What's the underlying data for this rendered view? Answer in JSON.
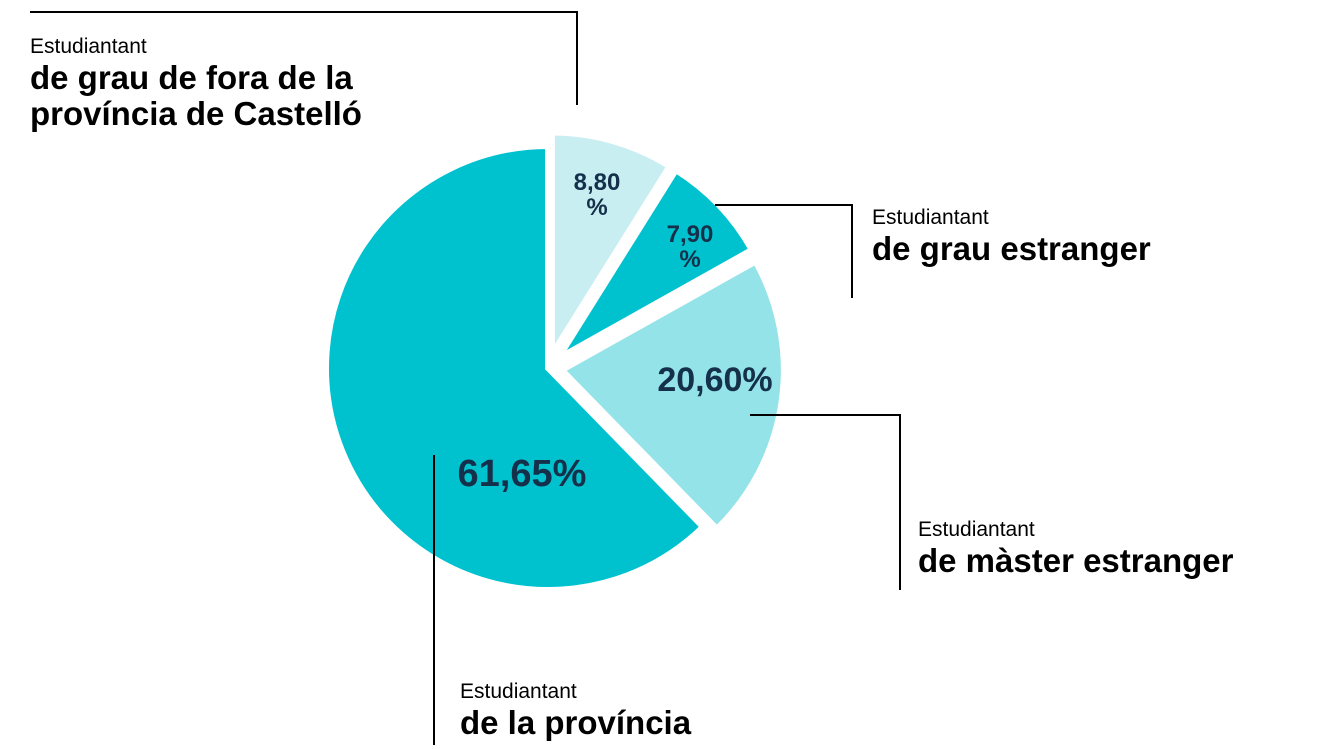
{
  "chart_data": {
    "type": "pie",
    "category_prefixes": [
      "Estudiantant",
      "Estudiantant",
      "Estudiantant",
      "Estudiantant"
    ],
    "categories": [
      "de grau de fora de la província de Castelló",
      "de grau estranger",
      "de màster estranger",
      "de la província"
    ],
    "values": [
      8.8,
      7.9,
      20.6,
      61.65
    ],
    "value_labels": [
      "8,80 %",
      "7,90 %",
      "20,60%",
      "61,65%"
    ],
    "colors": [
      "#c8eef2",
      "#00c2cf",
      "#93e3e8",
      "#00c2cf"
    ]
  }
}
